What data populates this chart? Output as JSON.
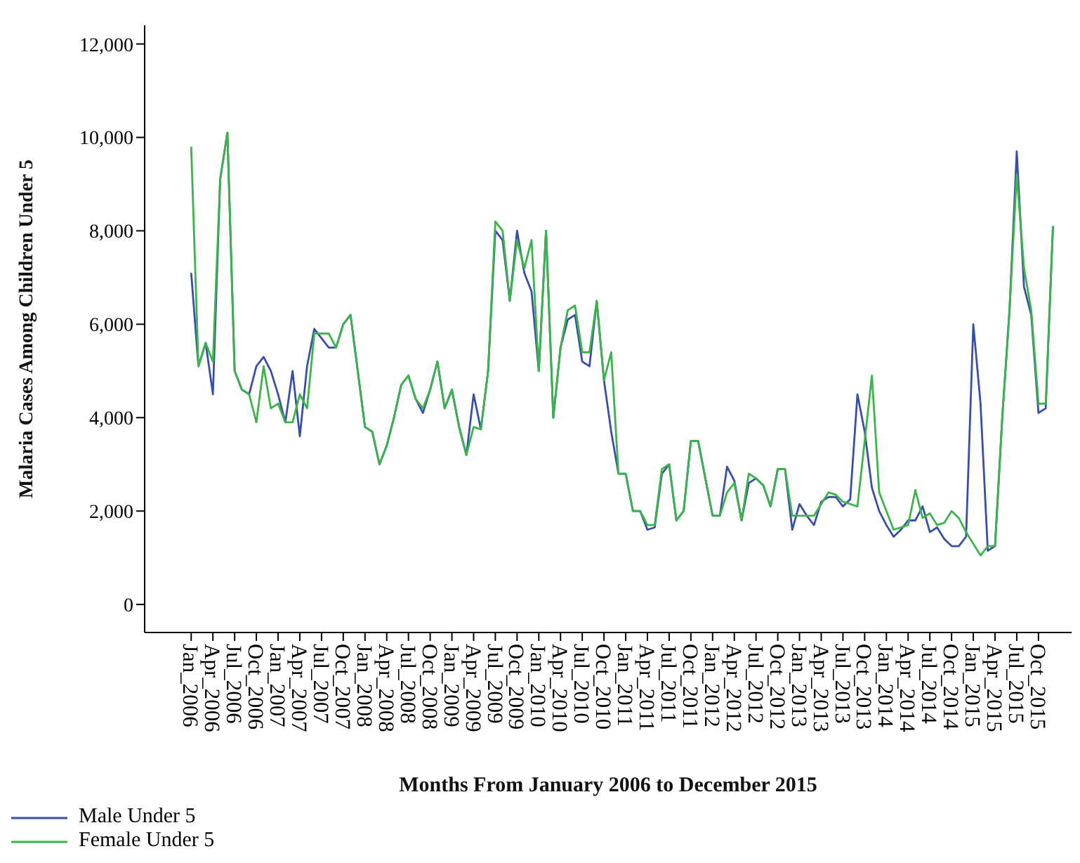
{
  "chart_data": {
    "type": "line",
    "xlabel": "Months From January 2006 to December 2015",
    "ylabel": "Malaria Cases Among Children Under 5",
    "categories": [
      "Jan_2006",
      null,
      null,
      "Apr_2006",
      null,
      null,
      "Jul_2006",
      null,
      null,
      "Oct_2006",
      null,
      null,
      "Jan_2007",
      null,
      null,
      "Apr_2007",
      null,
      null,
      "Jul_2007",
      null,
      null,
      "Oct_2007",
      null,
      null,
      "Jan_2008",
      null,
      null,
      "Apr_2008",
      null,
      null,
      "Jul_2008",
      null,
      null,
      "Oct_2008",
      null,
      null,
      "Jan_2009",
      null,
      null,
      "Apr_2009",
      null,
      null,
      "Jul_2009",
      null,
      null,
      "Oct_2009",
      null,
      null,
      "Jan_2010",
      null,
      null,
      "Apr_2010",
      null,
      null,
      "Jul_2010",
      null,
      null,
      "Oct_2010",
      null,
      null,
      "Jan_2011",
      null,
      null,
      "Apr_2011",
      null,
      null,
      "Jul_2011",
      null,
      null,
      "Oct_2011",
      null,
      null,
      "Jan_2012",
      null,
      null,
      "Apr_2012",
      null,
      null,
      "Jul_2012",
      null,
      null,
      "Oct_2012",
      null,
      null,
      "Jan_2013",
      null,
      null,
      "Apr_2013",
      null,
      null,
      "Jul_2013",
      null,
      null,
      "Oct_2013",
      null,
      null,
      "Jan_2014",
      null,
      null,
      "Apr_2014",
      null,
      null,
      "Jul_2014",
      null,
      null,
      "Oct_2014",
      null,
      null,
      "Jan_2015",
      null,
      null,
      "Apr_2015",
      null,
      null,
      "Jul_2015",
      null,
      null,
      "Oct_2015",
      null,
      null
    ],
    "series": [
      {
        "name": "Male Under 5",
        "color": "#3a50a8",
        "values": [
          7100,
          5100,
          5600,
          4500,
          9100,
          10100,
          5000,
          4600,
          4500,
          5100,
          5300,
          5000,
          4500,
          3900,
          5000,
          3600,
          5100,
          5900,
          5700,
          5500,
          5500,
          6000,
          6200,
          5000,
          3800,
          3700,
          3000,
          3400,
          4000,
          4700,
          4900,
          4400,
          4100,
          4600,
          5200,
          4200,
          4600,
          3800,
          3200,
          4500,
          3750,
          5000,
          8000,
          7800,
          6500,
          8000,
          7100,
          6700,
          5000,
          8000,
          4000,
          5500,
          6100,
          6200,
          5200,
          5100,
          6500,
          4800,
          3700,
          2800,
          2800,
          2000,
          2000,
          1600,
          1650,
          2800,
          3000,
          1800,
          2000,
          3500,
          3500,
          2700,
          1900,
          1900,
          2950,
          2650,
          1800,
          2600,
          2700,
          2550,
          2100,
          2900,
          2900,
          1600,
          2150,
          1900,
          1700,
          2200,
          2300,
          2300,
          2100,
          2250,
          4500,
          3700,
          2500,
          2000,
          1700,
          1450,
          1600,
          1800,
          1800,
          2100,
          1550,
          1650,
          1400,
          1250,
          1250,
          1450,
          6000,
          4300,
          1150,
          1250,
          4000,
          6300,
          9700,
          6800,
          6200,
          4100,
          4200,
          8100
        ]
      },
      {
        "name": "Female Under 5",
        "color": "#3cb44b",
        "values": [
          9800,
          5100,
          5600,
          5200,
          9100,
          10100,
          5000,
          4600,
          4500,
          3900,
          5100,
          4200,
          4300,
          3900,
          3900,
          4500,
          4200,
          5800,
          5800,
          5800,
          5500,
          6000,
          6200,
          5000,
          3800,
          3700,
          3000,
          3400,
          4000,
          4700,
          4900,
          4400,
          4200,
          4600,
          5200,
          4200,
          4600,
          3800,
          3200,
          3800,
          3750,
          5000,
          8200,
          8000,
          6500,
          7800,
          7200,
          7800,
          5000,
          8000,
          4000,
          5500,
          6300,
          6400,
          5400,
          5400,
          6500,
          4800,
          5400,
          2800,
          2800,
          2000,
          2000,
          1700,
          1700,
          2900,
          3000,
          1800,
          2000,
          3500,
          3500,
          2700,
          1900,
          1900,
          2400,
          2600,
          1800,
          2800,
          2700,
          2550,
          2100,
          2900,
          2900,
          1900,
          1900,
          1900,
          1900,
          2150,
          2400,
          2350,
          2200,
          2150,
          2100,
          3500,
          4900,
          2400,
          2000,
          1600,
          1650,
          1700,
          2450,
          1850,
          1950,
          1700,
          1750,
          2000,
          1850,
          1550,
          1300,
          1050,
          1250,
          1250,
          4000,
          6300,
          9200,
          7200,
          6300,
          4300,
          4300,
          8100
        ]
      }
    ],
    "ylim": [
      -600,
      12400
    ],
    "yticks": [
      0,
      {
        "value": 2000,
        "label": "2,000"
      },
      {
        "value": 4000,
        "label": "4,000"
      },
      {
        "value": 6000,
        "label": "6,000"
      },
      {
        "value": 8000,
        "label": "8,000"
      },
      {
        "value": 10000,
        "label": "10,000"
      },
      {
        "value": 12000,
        "label": "12,000"
      }
    ],
    "legend": "bottom left"
  }
}
